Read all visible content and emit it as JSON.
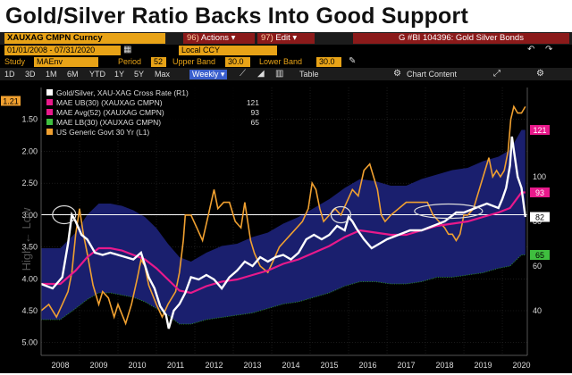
{
  "headline": "Gold/Silver Ratio Backs Into Good Support",
  "toolbar": {
    "ticker": "XAUXAG CMPN Curncy",
    "actions_num": "96)",
    "actions_label": "Actions ▾",
    "edit_num": "97)",
    "edit_label": "Edit ▾",
    "function_title": "G #BI 104396: Gold Silver Bonds",
    "date_range": "01/01/2008 - 07/31/2020",
    "currency": "Local CCY",
    "study_label": "Study",
    "study_value": "MAEnv",
    "period_label": "Period",
    "period_value": "52",
    "upper_band_label": "Upper Band",
    "upper_band_value": "30.0",
    "lower_band_label": "Lower Band",
    "lower_band_value": "30.0",
    "ranges": [
      "1D",
      "3D",
      "1M",
      "6M",
      "YTD",
      "1Y",
      "5Y",
      "Max"
    ],
    "frequency": "Weekly ▾",
    "table_label": "Table",
    "chart_content_label": "Chart Content"
  },
  "colors": {
    "ratio": "#ffffff",
    "mae_avg": "#e8198b",
    "bond": "#f0a030",
    "envelope": "#1a1f6e",
    "mae_lb_value": "#3fbf3f",
    "mae_avg_value": "#e8198b",
    "mae_ub_value": "#e8198b"
  },
  "chart_data": {
    "type": "line",
    "x_labels": [
      "2008",
      "2009",
      "2010",
      "2011",
      "2012",
      "2013",
      "2014",
      "2015",
      "2016",
      "2017",
      "2018",
      "2019",
      "2020"
    ],
    "x_range": [
      2008.0,
      2020.65
    ],
    "y_left_ticks": [
      "1.50",
      "2.00",
      "2.50",
      "3.00",
      "3.50",
      "4.00",
      "4.50",
      "5.00"
    ],
    "y_left_axis_label": "High ← Low",
    "y_left_range": [
      1.0,
      5.2
    ],
    "y_left_reversed": true,
    "y_right_ticks": [
      "100",
      "80",
      "60",
      "40"
    ],
    "y_right_range": [
      20,
      140
    ],
    "current_labels": {
      "bond": "1.21",
      "mae_ub": "121",
      "mae_avg": "93",
      "ratio": "82",
      "mae_lb": "65"
    },
    "support_line_value": 83,
    "legend": [
      {
        "label": "Gold/Silver, XAU-XAG Cross Rate (R1)",
        "value": ""
      },
      {
        "label": "MAE UB(30) (XAUXAG CMPN)",
        "value": "121"
      },
      {
        "label": "MAE Avg(52) (XAUXAG CMPN)",
        "value": "93"
      },
      {
        "label": "MAE LB(30) (XAUXAG CMPN)",
        "value": "65"
      },
      {
        "label": "US Generic Govt 30 Yr (L1)",
        "value": ""
      }
    ],
    "series": [
      {
        "name": "Gold/Silver, XAU-XAG Cross Rate",
        "axis": "right",
        "x": [
          2008.0,
          2008.3,
          2008.55,
          2008.7,
          2008.8,
          2008.9,
          2009.05,
          2009.2,
          2009.4,
          2009.6,
          2009.8,
          2010.0,
          2010.2,
          2010.4,
          2010.6,
          2010.8,
          2010.95,
          2011.1,
          2011.25,
          2011.32,
          2011.45,
          2011.6,
          2011.75,
          2011.9,
          2012.1,
          2012.3,
          2012.5,
          2012.7,
          2012.9,
          2013.1,
          2013.3,
          2013.5,
          2013.7,
          2013.9,
          2014.1,
          2014.3,
          2014.5,
          2014.7,
          2014.9,
          2015.1,
          2015.3,
          2015.5,
          2015.7,
          2015.9,
          2016.0,
          2016.1,
          2016.2,
          2016.4,
          2016.6,
          2016.8,
          2017.0,
          2017.3,
          2017.6,
          2017.9,
          2018.2,
          2018.5,
          2018.8,
          2019.0,
          2019.3,
          2019.6,
          2019.9,
          2020.0,
          2020.1,
          2020.2,
          2020.25,
          2020.3,
          2020.4,
          2020.5,
          2020.6
        ],
        "values": [
          52,
          50,
          55,
          70,
          83,
          80,
          74,
          72,
          66,
          65,
          66,
          65,
          64,
          63,
          66,
          55,
          50,
          42,
          38,
          32,
          40,
          43,
          48,
          55,
          54,
          56,
          54,
          50,
          55,
          58,
          62,
          60,
          64,
          62,
          64,
          65,
          63,
          66,
          72,
          74,
          72,
          74,
          78,
          76,
          82,
          80,
          77,
          72,
          68,
          70,
          72,
          74,
          76,
          76,
          78,
          80,
          84,
          84,
          86,
          88,
          86,
          90,
          95,
          105,
          118,
          112,
          100,
          95,
          82
        ]
      },
      {
        "name": "MAE Avg(52)",
        "axis": "right",
        "x": [
          2008.0,
          2008.5,
          2008.9,
          2009.2,
          2009.5,
          2009.8,
          2010.1,
          2010.4,
          2010.7,
          2011.0,
          2011.3,
          2011.6,
          2011.9,
          2012.3,
          2012.7,
          2013.1,
          2013.5,
          2013.9,
          2014.3,
          2014.7,
          2015.1,
          2015.5,
          2015.9,
          2016.3,
          2016.7,
          2017.1,
          2017.5,
          2017.9,
          2018.3,
          2018.7,
          2019.1,
          2019.5,
          2019.9,
          2020.2,
          2020.5,
          2020.6
        ],
        "values": [
          52,
          52,
          58,
          64,
          68,
          68,
          67,
          65,
          63,
          59,
          54,
          49,
          48,
          51,
          53,
          54,
          56,
          58,
          61,
          63,
          66,
          69,
          73,
          76,
          75,
          74,
          74,
          76,
          78,
          79,
          80,
          82,
          84,
          86,
          93,
          93
        ]
      },
      {
        "name": "US Generic Govt 30 Yr",
        "axis": "left",
        "x": [
          2008.0,
          2008.2,
          2008.4,
          2008.55,
          2008.7,
          2008.8,
          2008.9,
          2009.0,
          2009.1,
          2009.2,
          2009.35,
          2009.5,
          2009.6,
          2009.75,
          2009.9,
          2010.0,
          2010.2,
          2010.35,
          2010.5,
          2010.6,
          2010.7,
          2010.8,
          2011.0,
          2011.15,
          2011.3,
          2011.5,
          2011.6,
          2011.7,
          2011.75,
          2011.9,
          2012.05,
          2012.2,
          2012.35,
          2012.5,
          2012.6,
          2012.75,
          2012.9,
          2013.05,
          2013.2,
          2013.3,
          2013.45,
          2013.55,
          2013.7,
          2013.9,
          2014.05,
          2014.2,
          2014.35,
          2014.5,
          2014.65,
          2014.8,
          2014.95,
          2015.05,
          2015.15,
          2015.25,
          2015.35,
          2015.5,
          2015.65,
          2015.8,
          2015.95,
          2016.1,
          2016.25,
          2016.4,
          2016.55,
          2016.65,
          2016.75,
          2016.85,
          2016.95,
          2017.1,
          2017.3,
          2017.5,
          2017.7,
          2017.9,
          2018.05,
          2018.2,
          2018.35,
          2018.5,
          2018.6,
          2018.7,
          2018.8,
          2018.9,
          2019.0,
          2019.1,
          2019.25,
          2019.4,
          2019.55,
          2019.65,
          2019.75,
          2019.85,
          2019.95,
          2020.05,
          2020.15,
          2020.22,
          2020.3,
          2020.4,
          2020.5,
          2020.6
        ],
        "values": [
          4.5,
          4.4,
          4.6,
          4.4,
          4.2,
          3.9,
          3.3,
          2.9,
          3.3,
          3.6,
          4.1,
          4.4,
          4.2,
          4.3,
          4.6,
          4.4,
          4.7,
          4.4,
          4.0,
          3.7,
          3.8,
          4.1,
          4.4,
          4.6,
          4.4,
          4.2,
          3.9,
          3.4,
          3.0,
          3.0,
          3.2,
          3.4,
          3.0,
          2.6,
          2.9,
          2.8,
          2.8,
          3.1,
          3.2,
          2.8,
          3.4,
          3.6,
          3.8,
          3.9,
          3.7,
          3.5,
          3.4,
          3.3,
          3.2,
          3.1,
          2.9,
          2.5,
          2.6,
          2.9,
          3.1,
          3.0,
          2.9,
          3.0,
          2.8,
          2.6,
          2.7,
          2.3,
          2.2,
          2.4,
          2.6,
          3.0,
          3.1,
          3.0,
          2.9,
          2.8,
          2.8,
          2.8,
          2.8,
          3.0,
          3.1,
          3.2,
          3.3,
          3.3,
          3.4,
          3.3,
          3.0,
          3.0,
          2.9,
          2.6,
          2.3,
          2.1,
          2.4,
          2.3,
          2.4,
          2.3,
          2.0,
          1.5,
          1.3,
          1.4,
          1.4,
          1.3
        ]
      },
      {
        "name": "MAE UB(30)",
        "axis": "right",
        "x": [
          2008.0,
          2008.5,
          2008.9,
          2009.2,
          2009.5,
          2009.8,
          2010.1,
          2010.4,
          2010.7,
          2011.0,
          2011.3,
          2011.6,
          2011.9,
          2012.3,
          2012.7,
          2013.1,
          2013.5,
          2013.9,
          2014.3,
          2014.7,
          2015.1,
          2015.5,
          2015.9,
          2016.3,
          2016.7,
          2017.1,
          2017.5,
          2017.9,
          2018.3,
          2018.7,
          2019.1,
          2019.5,
          2019.9,
          2020.2,
          2020.5,
          2020.6
        ],
        "values": [
          68,
          68,
          75,
          83,
          88,
          88,
          87,
          85,
          82,
          77,
          70,
          64,
          62,
          66,
          69,
          70,
          73,
          75,
          79,
          82,
          86,
          90,
          95,
          99,
          98,
          96,
          96,
          99,
          101,
          103,
          104,
          107,
          109,
          112,
          121,
          121
        ]
      },
      {
        "name": "MAE LB(30)",
        "axis": "right",
        "x": [
          2008.0,
          2008.5,
          2008.9,
          2009.2,
          2009.5,
          2009.8,
          2010.1,
          2010.4,
          2010.7,
          2011.0,
          2011.3,
          2011.6,
          2011.9,
          2012.3,
          2012.7,
          2013.1,
          2013.5,
          2013.9,
          2014.3,
          2014.7,
          2015.1,
          2015.5,
          2015.9,
          2016.3,
          2016.7,
          2017.1,
          2017.5,
          2017.9,
          2018.3,
          2018.7,
          2019.1,
          2019.5,
          2019.9,
          2020.2,
          2020.5,
          2020.6
        ],
        "values": [
          36,
          36,
          41,
          45,
          48,
          48,
          47,
          46,
          44,
          41,
          38,
          34,
          34,
          36,
          37,
          38,
          39,
          41,
          43,
          44,
          46,
          48,
          51,
          53,
          53,
          52,
          52,
          53,
          55,
          55,
          56,
          57,
          59,
          60,
          65,
          65
        ]
      }
    ]
  }
}
